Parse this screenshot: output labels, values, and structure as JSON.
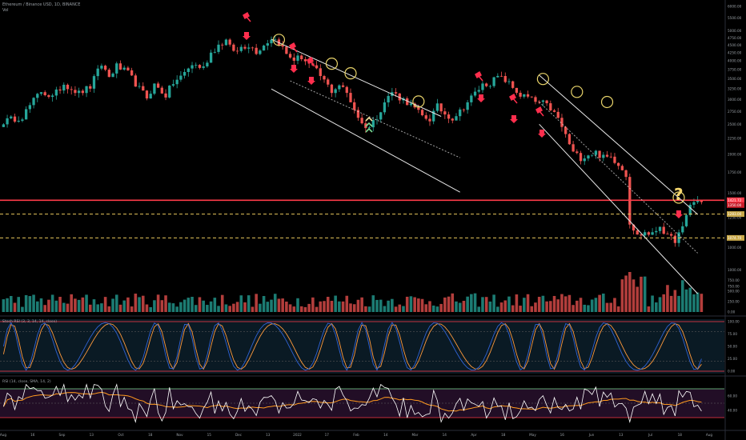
{
  "header": {
    "symbol_line": "Ethereum / Binance USD, 1D, BINANCE",
    "vol_label": "Vol",
    "stoch_label": "Stoch RSI (3, 3, 14, 14, close)",
    "rsi_label": "RSI (14, close, SMA, 14, 2)"
  },
  "colors": {
    "background": "#000000",
    "up_candle": "#26a69a",
    "down_candle": "#ef5350",
    "channel_line": "#e8e8e8",
    "resistance": "#ff3b4a",
    "support_dashed": "#e8c65c",
    "circle": "#e8d36a",
    "signal_red": "#ff2e4d",
    "signal_green": "#7bd88f",
    "question": "#f5d76e",
    "stoch_k": "#2f63d6",
    "stoch_d": "#ff9a3c",
    "rsi_line": "#ffffff",
    "rsi_ma": "#ff9a1f",
    "rsi_band": "#2a1230"
  },
  "chart_data": [
    {
      "type": "candlestick",
      "symbol": "Ethereum / Binance USD, 1D, BINANCE",
      "x_labels": [
        "Aug",
        "16",
        "Sep",
        "13",
        "Oct",
        "18",
        "Nov",
        "15",
        "Dec",
        "13",
        "2022",
        "17",
        "Feb",
        "14",
        "Mar",
        "14",
        "Apr",
        "18",
        "May",
        "16",
        "Jun",
        "13",
        "Jul",
        "18",
        "Aug"
      ],
      "y_scale": "log",
      "y_ticks": [
        6000.0,
        5500.0,
        5000.0,
        4750.0,
        4500.0,
        4250.0,
        4000.0,
        3750.0,
        3500.0,
        3250.0,
        3000.0,
        2750.0,
        2500.0,
        2250.0,
        2000.0,
        1750.0,
        1500.0,
        1250.0,
        1000.0,
        750.0
      ],
      "y_tick_labels": [
        "6000.00",
        "5500.00",
        "5000.00",
        "4750.00",
        "4500.00",
        "4250.00",
        "4000.00",
        "3750.00",
        "3500.00",
        "3250.00",
        "3000.00",
        "2750.00",
        "2500.00",
        "2250.00",
        "2000.00",
        "1750.00",
        "1500.00",
        "1250.00",
        "1000.00",
        "750.00"
      ],
      "key_levels": [
        {
          "label": "1421.72",
          "value": 1421.72,
          "style": "solid-red"
        },
        {
          "label": "1350.00",
          "value": 1350.0,
          "style": "red-tag"
        },
        {
          "label": "1283.00",
          "value": 1283.0,
          "style": "dashed-yellow"
        },
        {
          "label": "1074.70",
          "value": 1074.7,
          "style": "dashed-yellow"
        }
      ],
      "price_path": [
        [
          0,
          2550
        ],
        [
          5,
          2650
        ],
        [
          10,
          3200
        ],
        [
          13,
          3050
        ],
        [
          16,
          3380
        ],
        [
          20,
          3150
        ],
        [
          23,
          3300
        ],
        [
          26,
          3900
        ],
        [
          28,
          3550
        ],
        [
          30,
          3850
        ],
        [
          33,
          3650
        ],
        [
          36,
          3250
        ],
        [
          38,
          3050
        ],
        [
          40,
          3350
        ],
        [
          43,
          3100
        ],
        [
          45,
          3400
        ],
        [
          47,
          3550
        ],
        [
          50,
          3900
        ],
        [
          53,
          3800
        ],
        [
          55,
          4250
        ],
        [
          57,
          4500
        ],
        [
          59,
          4650
        ],
        [
          60,
          4420
        ],
        [
          62,
          4280
        ],
        [
          63,
          4450
        ],
        [
          65,
          4500
        ],
        [
          67,
          4300
        ],
        [
          69,
          4500
        ],
        [
          71,
          4750
        ],
        [
          73,
          4600
        ],
        [
          75,
          4200
        ],
        [
          77,
          4050
        ],
        [
          79,
          4120
        ],
        [
          81,
          3900
        ],
        [
          83,
          3700
        ],
        [
          85,
          3450
        ],
        [
          87,
          3200
        ],
        [
          89,
          3350
        ],
        [
          91,
          3150
        ],
        [
          93,
          2800
        ],
        [
          95,
          2500
        ],
        [
          97,
          2450
        ],
        [
          99,
          2650
        ],
        [
          101,
          2950
        ],
        [
          103,
          3180
        ],
        [
          105,
          3050
        ],
        [
          107,
          2950
        ],
        [
          109,
          2800
        ],
        [
          111,
          2650
        ],
        [
          113,
          2600
        ],
        [
          115,
          2850
        ],
        [
          117,
          2700
        ],
        [
          119,
          2620
        ],
        [
          121,
          2750
        ],
        [
          123,
          2950
        ],
        [
          125,
          3150
        ],
        [
          127,
          3350
        ],
        [
          129,
          3400
        ],
        [
          131,
          3550
        ],
        [
          133,
          3470
        ],
        [
          135,
          3280
        ],
        [
          137,
          3100
        ],
        [
          139,
          3050
        ],
        [
          141,
          2950
        ],
        [
          143,
          2920
        ],
        [
          145,
          2810
        ],
        [
          147,
          2600
        ],
        [
          149,
          2300
        ],
        [
          151,
          2020
        ],
        [
          153,
          1950
        ],
        [
          155,
          2000
        ],
        [
          157,
          2030
        ],
        [
          159,
          1950
        ],
        [
          161,
          1960
        ],
        [
          163,
          1870
        ],
        [
          165,
          1720
        ],
        [
          166,
          1210
        ],
        [
          168,
          1090
        ],
        [
          170,
          1120
        ],
        [
          172,
          1100
        ],
        [
          174,
          1180
        ],
        [
          176,
          1080
        ],
        [
          178,
          1060
        ],
        [
          180,
          1150
        ],
        [
          182,
          1380
        ],
        [
          184,
          1421
        ]
      ],
      "annotations": [
        "sell-arrow x9",
        "buy-chevron x1",
        "highlight-circle x9",
        "question-mark x1",
        "descending-channel x2",
        "horizontal-resistance x1",
        "horizontal-support x2"
      ]
    },
    {
      "type": "bar",
      "name": "Vol",
      "y_ticks": [
        1000.0,
        750.0,
        500.0,
        250.0,
        0
      ],
      "y_tick_labels": [
        "1000.00",
        "750.00",
        "500.00",
        "250.00",
        "0.00"
      ]
    },
    {
      "type": "line",
      "name": "Stoch RSI (3, 3, 14, 14, close)",
      "ylim": [
        0,
        100
      ],
      "y_ticks": [
        100.0,
        75.0,
        50.0,
        25.0,
        0
      ],
      "y_tick_labels": [
        "100.00",
        "75.00",
        "50.00",
        "25.00",
        "0.00"
      ]
    },
    {
      "type": "line",
      "name": "RSI (14, close, SMA, 14, 2)",
      "ylim": [
        20,
        80
      ],
      "bands": [
        30,
        70
      ],
      "y_ticks": [
        60,
        40
      ],
      "y_tick_labels": [
        "60.00",
        "40.00"
      ]
    }
  ]
}
